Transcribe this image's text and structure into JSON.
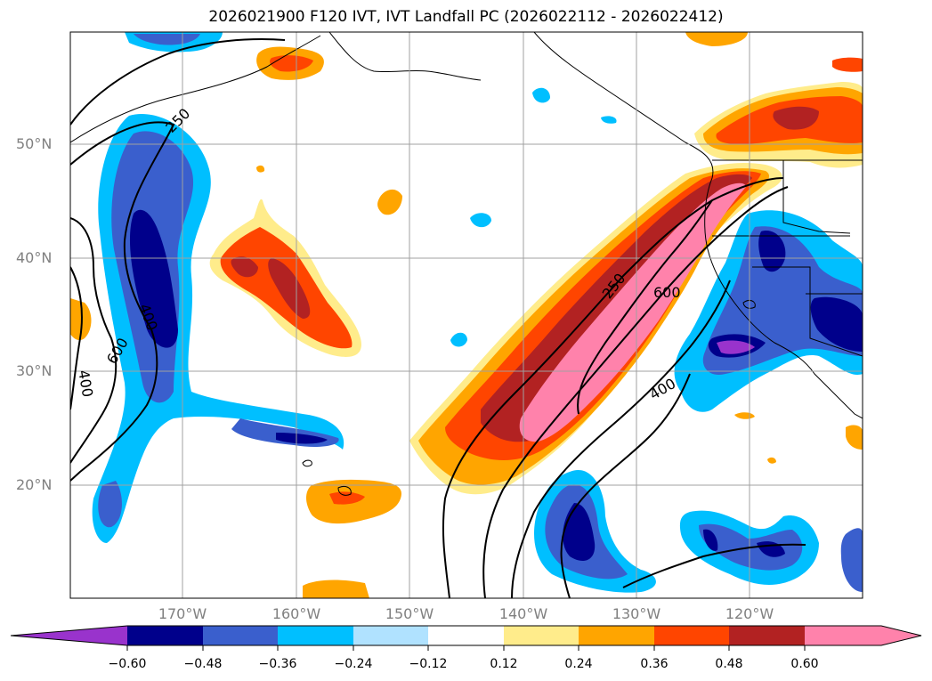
{
  "title": "2026021900 F120 IVT, IVT Landfall PC (2026022112 - 2026022412)",
  "lat_labels": [
    "50°N",
    "40°N",
    "30°N",
    "20°N"
  ],
  "lon_labels": [
    "170°W",
    "160°W",
    "150°W",
    "140°W",
    "130°W",
    "120°W"
  ],
  "contour_labels": [
    "250",
    "400",
    "600",
    "600",
    "400",
    "250",
    "600",
    "400"
  ],
  "colorbar": {
    "ticks": [
      "−0.60",
      "−0.48",
      "−0.36",
      "−0.24",
      "−0.12",
      "0.12",
      "0.24",
      "0.36",
      "0.48",
      "0.60"
    ],
    "colors": [
      "#9933cc",
      "#00008b",
      "#3a5fcd",
      "#00bfff",
      "#b0e2ff",
      "#ffffff",
      "#ffec8b",
      "#ffa500",
      "#ff4500",
      "#b22222",
      "#ff82ab"
    ]
  }
}
